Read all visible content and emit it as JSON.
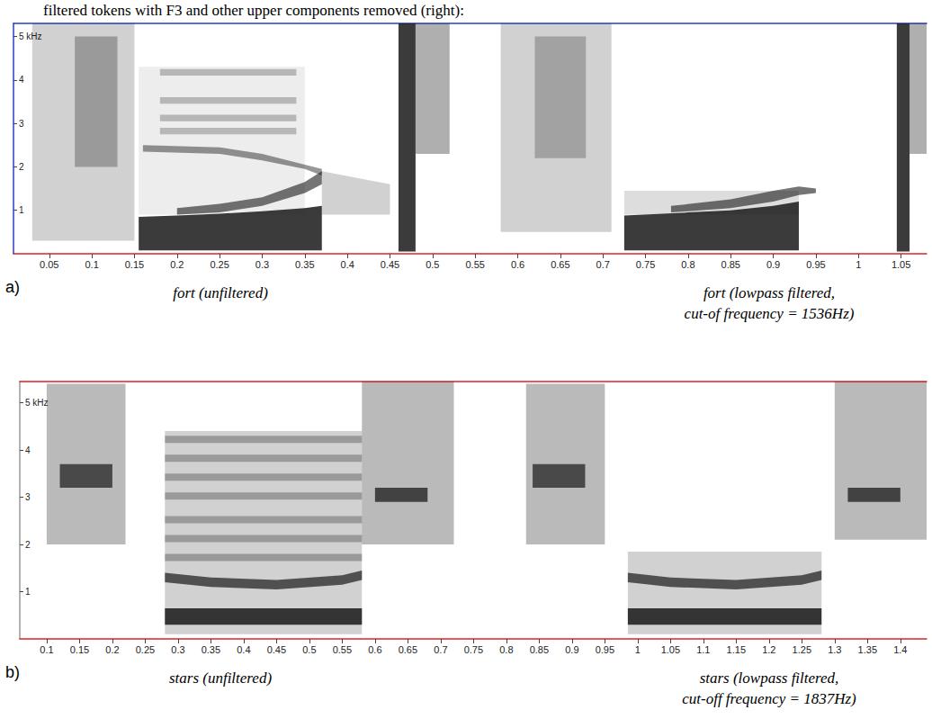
{
  "title": "filtered tokens with F3 and other upper components removed (right):",
  "chart_data": [
    {
      "type": "spectrogram",
      "label": "a)",
      "captions": [
        "fort (unfiltered)",
        "fort (lowpass filtered, cut-of frequency = 1536Hz)"
      ],
      "xlim": [
        0.008,
        1.08
      ],
      "xticks": [
        0.05,
        0.1,
        0.15,
        0.2,
        0.25,
        0.3,
        0.35,
        0.4,
        0.45,
        0.5,
        0.55,
        0.6,
        0.65,
        0.7,
        0.75,
        0.8,
        0.85,
        0.9,
        0.95,
        1,
        1.05
      ],
      "ylim": [
        0,
        5.3
      ],
      "yticks": [
        1,
        2,
        3,
        4,
        {
          "value": 5,
          "label": "5 kHz"
        }
      ],
      "bands": [
        {
          "t": [
            0.03,
            0.15
          ],
          "low": [
            0.3,
            0.3
          ],
          "high": [
            5.3,
            5.3
          ],
          "level": 0.2
        },
        {
          "t": [
            0.08,
            0.13
          ],
          "low": [
            2.0,
            2.0
          ],
          "high": [
            5.0,
            5.0
          ],
          "level": 0.3
        },
        {
          "t": [
            0.155,
            0.35
          ],
          "low": [
            0.9,
            0.9
          ],
          "high": [
            4.3,
            4.3
          ],
          "level": 0.08
        },
        {
          "t": [
            0.155,
            0.2,
            0.25,
            0.3,
            0.35,
            0.37
          ],
          "low": [
            0.08,
            0.08,
            0.08,
            0.08,
            0.08,
            0.08
          ],
          "high": [
            0.85,
            0.88,
            0.92,
            0.98,
            1.05,
            1.1
          ],
          "level": 0.85
        },
        {
          "t": [
            0.2,
            0.25,
            0.3,
            0.35,
            0.37
          ],
          "low": [
            0.9,
            0.95,
            1.1,
            1.4,
            1.6
          ],
          "high": [
            1.05,
            1.15,
            1.3,
            1.65,
            1.9
          ],
          "level": 0.6
        },
        {
          "t": [
            0.16,
            0.25,
            0.3,
            0.35,
            0.37
          ],
          "low": [
            2.35,
            2.3,
            2.15,
            1.95,
            1.8
          ],
          "high": [
            2.5,
            2.45,
            2.3,
            2.05,
            1.95
          ],
          "level": 0.45
        },
        {
          "t": [
            0.18,
            0.34
          ],
          "low": [
            2.75,
            2.75
          ],
          "high": [
            2.9,
            2.9
          ],
          "level": 0.25
        },
        {
          "t": [
            0.18,
            0.34
          ],
          "low": [
            3.05,
            3.05
          ],
          "high": [
            3.2,
            3.2
          ],
          "level": 0.25
        },
        {
          "t": [
            0.18,
            0.34
          ],
          "low": [
            3.45,
            3.45
          ],
          "high": [
            3.6,
            3.6
          ],
          "level": 0.25
        },
        {
          "t": [
            0.18,
            0.34
          ],
          "low": [
            4.1,
            4.1
          ],
          "high": [
            4.25,
            4.25
          ],
          "level": 0.25
        },
        {
          "t": [
            0.37,
            0.45
          ],
          "low": [
            0.9,
            0.9
          ],
          "high": [
            1.9,
            1.6
          ],
          "level": 0.2
        },
        {
          "t": [
            0.46,
            0.48
          ],
          "low": [
            0.05,
            0.05
          ],
          "high": [
            5.3,
            5.3
          ],
          "level": 0.85
        },
        {
          "t": [
            0.48,
            0.52
          ],
          "low": [
            2.3,
            2.3
          ],
          "high": [
            5.3,
            5.3
          ],
          "level": 0.35
        },
        {
          "t": [
            0.58,
            0.71
          ],
          "low": [
            0.5,
            0.5
          ],
          "high": [
            5.3,
            5.3
          ],
          "level": 0.2
        },
        {
          "t": [
            0.62,
            0.68
          ],
          "low": [
            2.2,
            2.2
          ],
          "high": [
            5.0,
            5.0
          ],
          "level": 0.25
        },
        {
          "t": [
            0.725,
            0.93
          ],
          "low": [
            0.9,
            0.9
          ],
          "high": [
            1.45,
            1.45
          ],
          "level": 0.15
        },
        {
          "t": [
            0.725,
            0.8,
            0.85,
            0.9,
            0.93
          ],
          "low": [
            0.08,
            0.08,
            0.08,
            0.08,
            0.08
          ],
          "high": [
            0.88,
            0.95,
            1.0,
            1.1,
            1.2
          ],
          "level": 0.85
        },
        {
          "t": [
            0.78,
            0.85,
            0.9,
            0.93,
            0.95
          ],
          "low": [
            0.95,
            1.05,
            1.2,
            1.35,
            1.4
          ],
          "high": [
            1.1,
            1.25,
            1.45,
            1.55,
            1.5
          ],
          "level": 0.6
        },
        {
          "t": [
            1.045,
            1.06
          ],
          "low": [
            0.05,
            0.05
          ],
          "high": [
            5.3,
            5.3
          ],
          "level": 0.85
        },
        {
          "t": [
            1.06,
            1.08
          ],
          "low": [
            2.3,
            2.3
          ],
          "high": [
            5.3,
            5.3
          ],
          "level": 0.35
        }
      ]
    },
    {
      "type": "spectrogram",
      "label": "b)",
      "captions": [
        "stars (unfiltered)",
        "stars (lowpass filtered, cut-off frequency = 1837Hz)"
      ],
      "xlim": [
        0.059,
        1.44
      ],
      "xticks": [
        0.1,
        0.15,
        0.2,
        0.25,
        0.3,
        0.35,
        0.4,
        0.45,
        0.5,
        0.55,
        0.6,
        0.65,
        0.7,
        0.75,
        0.8,
        0.85,
        0.9,
        0.95,
        1,
        1.05,
        1.1,
        1.15,
        1.2,
        1.25,
        1.3,
        1.35,
        1.4
      ],
      "ylim": [
        0,
        5.45
      ],
      "yticks": [
        1,
        2,
        3,
        4,
        {
          "value": 5,
          "label": "5 kHz"
        }
      ],
      "bands": [
        {
          "t": [
            0.1,
            0.22
          ],
          "low": [
            2.0,
            2.0
          ],
          "high": [
            5.4,
            5.4
          ],
          "level": 0.3
        },
        {
          "t": [
            0.12,
            0.2
          ],
          "low": [
            3.2,
            3.2
          ],
          "high": [
            3.7,
            3.7
          ],
          "level": 0.7
        },
        {
          "t": [
            0.28,
            0.58
          ],
          "low": [
            0.1,
            0.1
          ],
          "high": [
            4.4,
            4.4
          ],
          "level": 0.2
        },
        {
          "t": [
            0.28,
            0.58
          ],
          "low": [
            1.65,
            1.65
          ],
          "high": [
            1.8,
            1.8
          ],
          "level": 0.3
        },
        {
          "t": [
            0.28,
            0.58
          ],
          "low": [
            2.05,
            2.05
          ],
          "high": [
            2.2,
            2.2
          ],
          "level": 0.3
        },
        {
          "t": [
            0.28,
            0.58
          ],
          "low": [
            2.45,
            2.45
          ],
          "high": [
            2.6,
            2.6
          ],
          "level": 0.3
        },
        {
          "t": [
            0.28,
            0.58
          ],
          "low": [
            2.95,
            2.95
          ],
          "high": [
            3.1,
            3.1
          ],
          "level": 0.3
        },
        {
          "t": [
            0.28,
            0.58
          ],
          "low": [
            3.35,
            3.35
          ],
          "high": [
            3.5,
            3.5
          ],
          "level": 0.3
        },
        {
          "t": [
            0.28,
            0.58
          ],
          "low": [
            3.75,
            3.75
          ],
          "high": [
            3.9,
            3.9
          ],
          "level": 0.3
        },
        {
          "t": [
            0.28,
            0.58
          ],
          "low": [
            4.15,
            4.15
          ],
          "high": [
            4.3,
            4.3
          ],
          "level": 0.3
        },
        {
          "t": [
            0.28,
            0.58
          ],
          "low": [
            0.3,
            0.3
          ],
          "high": [
            0.65,
            0.65
          ],
          "level": 0.85
        },
        {
          "t": [
            0.28,
            0.35,
            0.45,
            0.55,
            0.58
          ],
          "low": [
            1.2,
            1.1,
            1.05,
            1.15,
            1.25
          ],
          "high": [
            1.4,
            1.3,
            1.25,
            1.35,
            1.45
          ],
          "level": 0.7
        },
        {
          "t": [
            0.58,
            0.72
          ],
          "low": [
            2.0,
            2.0
          ],
          "high": [
            5.45,
            5.45
          ],
          "level": 0.3
        },
        {
          "t": [
            0.6,
            0.68
          ],
          "low": [
            2.9,
            2.9
          ],
          "high": [
            3.2,
            3.2
          ],
          "level": 0.75
        },
        {
          "t": [
            0.83,
            0.95
          ],
          "low": [
            2.0,
            2.0
          ],
          "high": [
            5.4,
            5.4
          ],
          "level": 0.3
        },
        {
          "t": [
            0.84,
            0.92
          ],
          "low": [
            3.2,
            3.2
          ],
          "high": [
            3.7,
            3.7
          ],
          "level": 0.7
        },
        {
          "t": [
            0.985,
            1.28
          ],
          "low": [
            0.1,
            0.1
          ],
          "high": [
            1.85,
            1.85
          ],
          "level": 0.2
        },
        {
          "t": [
            0.985,
            1.28
          ],
          "low": [
            0.3,
            0.3
          ],
          "high": [
            0.65,
            0.65
          ],
          "level": 0.85
        },
        {
          "t": [
            0.985,
            1.05,
            1.15,
            1.25,
            1.28
          ],
          "low": [
            1.2,
            1.1,
            1.05,
            1.15,
            1.25
          ],
          "high": [
            1.4,
            1.3,
            1.25,
            1.35,
            1.45
          ],
          "level": 0.7
        },
        {
          "t": [
            1.3,
            1.44
          ],
          "low": [
            2.1,
            2.1
          ],
          "high": [
            5.45,
            5.45
          ],
          "level": 0.3
        },
        {
          "t": [
            1.32,
            1.4
          ],
          "low": [
            2.9,
            2.9
          ],
          "high": [
            3.2,
            3.2
          ],
          "level": 0.75
        }
      ]
    }
  ]
}
